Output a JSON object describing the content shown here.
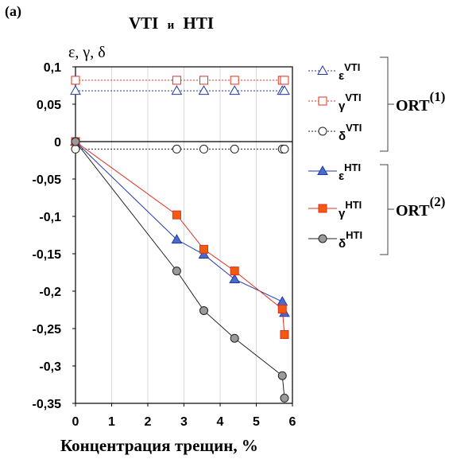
{
  "chart_data": {
    "type": "line",
    "panel_label": "(a)",
    "title_parts": [
      "VTI",
      "и",
      "HTI"
    ],
    "ylabel": "ε, γ, δ",
    "xlabel": "Концентрация трещин, %",
    "xlim": [
      0,
      6
    ],
    "ylim": [
      -0.35,
      0.1
    ],
    "x_ticks": [
      "0",
      "1",
      "2",
      "3",
      "4",
      "5",
      "6"
    ],
    "y_ticks": [
      "0,1",
      "0,05",
      "0",
      "-0,05",
      "-0,1",
      "-0,15",
      "-0,2",
      "-0,25",
      "-0,3",
      "-0,35"
    ],
    "y_tick_values": [
      0.1,
      0.05,
      0,
      -0.05,
      -0.1,
      -0.15,
      -0.2,
      -0.25,
      -0.3,
      -0.35
    ],
    "grid": {
      "vertical": true,
      "horizontal": false
    },
    "series": [
      {
        "name": "εVTI",
        "base": "ε",
        "sup": "VTI",
        "color": "#1f3aa8",
        "marker": "triangle",
        "filled": false,
        "line": "dotted",
        "x": [
          0,
          2.8,
          3.55,
          4.4,
          5.72,
          5.78
        ],
        "y": [
          0.068,
          0.068,
          0.068,
          0.068,
          0.068,
          0.068
        ]
      },
      {
        "name": "γVTI",
        "base": "γ",
        "sup": "VTI",
        "color": "#e03020",
        "marker": "square",
        "filled": false,
        "line": "dotted",
        "x": [
          0,
          2.8,
          3.55,
          4.4,
          5.72,
          5.78
        ],
        "y": [
          0.082,
          0.082,
          0.082,
          0.082,
          0.082,
          0.082
        ]
      },
      {
        "name": "δVTI",
        "base": "δ",
        "sup": "VTI",
        "color": "#222222",
        "marker": "circle",
        "filled": false,
        "line": "dotted",
        "x": [
          0,
          2.8,
          3.55,
          4.4,
          5.72,
          5.78
        ],
        "y": [
          -0.01,
          -0.01,
          -0.01,
          -0.01,
          -0.01,
          -0.01
        ]
      },
      {
        "name": "εHTI",
        "base": "ε",
        "sup": "HTI",
        "color": "#1f3aa8",
        "marker": "triangle",
        "filled": true,
        "fill": "#4a6cc8",
        "line": "solid",
        "x": [
          0,
          2.8,
          3.55,
          4.4,
          5.72,
          5.78
        ],
        "y": [
          0,
          -0.131,
          -0.151,
          -0.184,
          -0.214,
          -0.229
        ]
      },
      {
        "name": "γHTI",
        "base": "γ",
        "sup": "HTI",
        "color": "#e03020",
        "marker": "square",
        "filled": true,
        "fill": "#f25a10",
        "line": "solid",
        "x": [
          0,
          2.8,
          3.55,
          4.4,
          5.72,
          5.78
        ],
        "y": [
          0,
          -0.098,
          -0.144,
          -0.173,
          -0.224,
          -0.258
        ]
      },
      {
        "name": "δHTI",
        "base": "δ",
        "sup": "HTI",
        "color": "#222222",
        "marker": "circle",
        "filled": true,
        "fill": "#9a9a9a",
        "line": "solid",
        "x": [
          0,
          2.8,
          3.55,
          4.4,
          5.72,
          5.78
        ],
        "y": [
          0,
          -0.173,
          -0.226,
          -0.263,
          -0.313,
          -0.343
        ]
      }
    ],
    "groups": [
      {
        "label": "ORT",
        "sup": "(1)",
        "series": [
          "εVTI",
          "γVTI",
          "δVTI"
        ]
      },
      {
        "label": "ORT",
        "sup": "(2)",
        "series": [
          "εHTI",
          "γHTI",
          "δHTI"
        ]
      }
    ]
  }
}
